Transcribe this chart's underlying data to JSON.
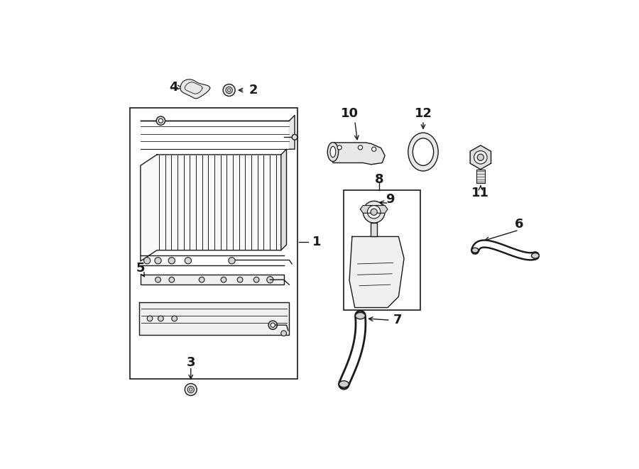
{
  "bg_color": "#ffffff",
  "line_color": "#1a1a1a",
  "fig_width": 9.0,
  "fig_height": 6.61,
  "dpi": 100,
  "lw": 1.0
}
